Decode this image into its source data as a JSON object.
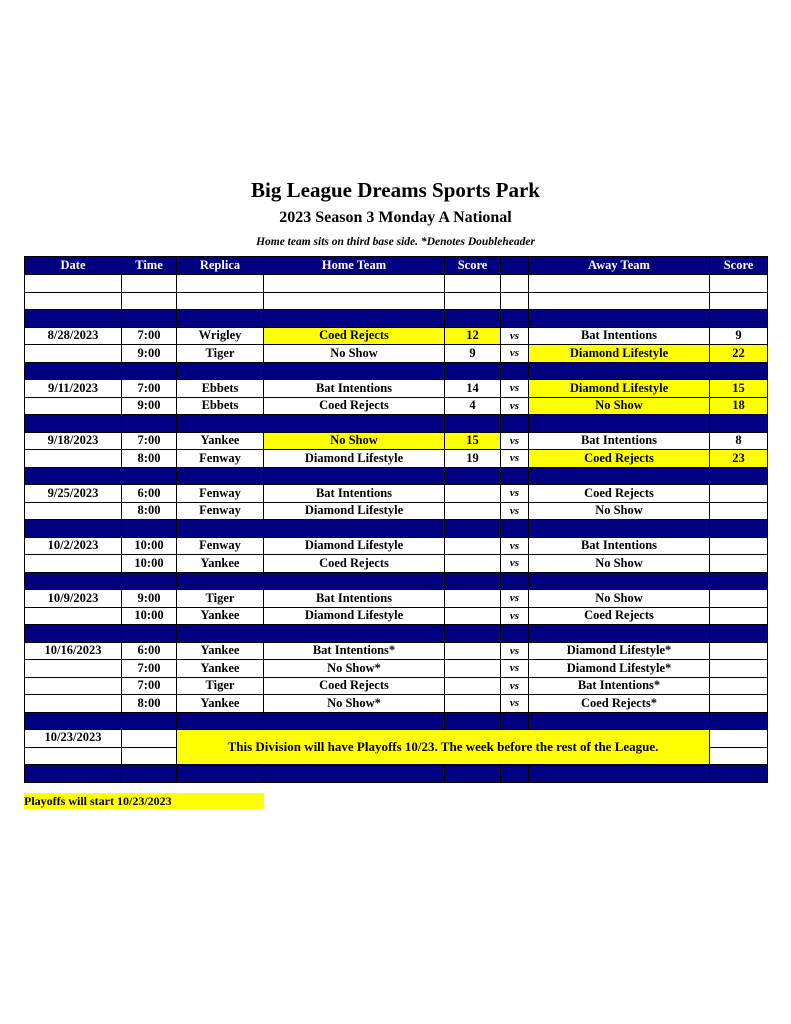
{
  "title": "Big League Dreams Sports Park",
  "subtitle": "2023 Season 3 Monday A National",
  "note": "Home team sits on third base side.  *Denotes Doubleheader",
  "colors": {
    "header": "#000080",
    "highlight": "#ffff00"
  },
  "columns": [
    "Date",
    "Time",
    "Replica",
    "Home Team",
    "Score",
    "",
    "Away Team",
    "Score"
  ],
  "vs_label": "vs",
  "rows": [
    {
      "type": "blank"
    },
    {
      "type": "blank"
    },
    {
      "type": "sep"
    },
    {
      "type": "game",
      "date": "8/28/2023",
      "time": "7:00",
      "replica": "Wrigley",
      "home": "Coed Rejects",
      "home_score": "12",
      "away": "Bat Intentions",
      "away_score": "9",
      "winner": "home"
    },
    {
      "type": "game",
      "date": "",
      "time": "9:00",
      "replica": "Tiger",
      "home": "No Show",
      "home_score": "9",
      "away": "Diamond Lifestyle",
      "away_score": "22",
      "winner": "away"
    },
    {
      "type": "sep"
    },
    {
      "type": "game",
      "date": "9/11/2023",
      "time": "7:00",
      "replica": "Ebbets",
      "home": "Bat Intentions",
      "home_score": "14",
      "away": "Diamond Lifestyle",
      "away_score": "15",
      "winner": "away"
    },
    {
      "type": "game",
      "date": "",
      "time": "9:00",
      "replica": "Ebbets",
      "home": "Coed Rejects",
      "home_score": "4",
      "away": "No Show",
      "away_score": "18",
      "winner": "away"
    },
    {
      "type": "sep"
    },
    {
      "type": "game",
      "date": "9/18/2023",
      "time": "7:00",
      "replica": "Yankee",
      "home": "No Show",
      "home_score": "15",
      "away": "Bat Intentions",
      "away_score": "8",
      "winner": "home"
    },
    {
      "type": "game",
      "date": "",
      "time": "8:00",
      "replica": "Fenway",
      "home": "Diamond Lifestyle",
      "home_score": "19",
      "away": "Coed Rejects",
      "away_score": "23",
      "winner": "away"
    },
    {
      "type": "sep"
    },
    {
      "type": "game",
      "date": "9/25/2023",
      "time": "6:00",
      "replica": "Fenway",
      "home": "Bat Intentions",
      "home_score": "",
      "away": "Coed Rejects",
      "away_score": ""
    },
    {
      "type": "game",
      "date": "",
      "time": "8:00",
      "replica": "Fenway",
      "home": "Diamond Lifestyle",
      "home_score": "",
      "away": "No Show",
      "away_score": ""
    },
    {
      "type": "sep"
    },
    {
      "type": "game",
      "date": "10/2/2023",
      "time": "10:00",
      "replica": "Fenway",
      "home": "Diamond Lifestyle",
      "home_score": "",
      "away": "Bat Intentions",
      "away_score": ""
    },
    {
      "type": "game",
      "date": "",
      "time": "10:00",
      "replica": "Yankee",
      "home": "Coed Rejects",
      "home_score": "",
      "away": "No Show",
      "away_score": ""
    },
    {
      "type": "sep"
    },
    {
      "type": "game",
      "date": "10/9/2023",
      "time": "9:00",
      "replica": "Tiger",
      "home": "Bat Intentions",
      "home_score": "",
      "away": "No Show",
      "away_score": ""
    },
    {
      "type": "game",
      "date": "",
      "time": "10:00",
      "replica": "Yankee",
      "home": "Diamond Lifestyle",
      "home_score": "",
      "away": "Coed Rejects",
      "away_score": ""
    },
    {
      "type": "sep"
    },
    {
      "type": "game",
      "date": "10/16/2023",
      "time": "6:00",
      "replica": "Yankee",
      "home": "Bat Intentions*",
      "home_score": "",
      "away": "Diamond Lifestyle*",
      "away_score": ""
    },
    {
      "type": "game",
      "date": "",
      "time": "7:00",
      "replica": "Yankee",
      "home": "No Show*",
      "home_score": "",
      "away": "Diamond Lifestyle*",
      "away_score": ""
    },
    {
      "type": "game",
      "date": "",
      "time": "7:00",
      "replica": "Tiger",
      "home": "Coed Rejects",
      "home_score": "",
      "away": "Bat Intentions*",
      "away_score": ""
    },
    {
      "type": "game",
      "date": "",
      "time": "8:00",
      "replica": "Yankee",
      "home": "No Show*",
      "home_score": "",
      "away": "Coed Rejects*",
      "away_score": ""
    },
    {
      "type": "sep"
    },
    {
      "type": "playoff",
      "date": "10/23/2023",
      "text": "This Division will have Playoffs 10/23. The week before the rest of the League."
    },
    {
      "type": "sep"
    }
  ],
  "footer": "Playoffs will start 10/23/2023"
}
